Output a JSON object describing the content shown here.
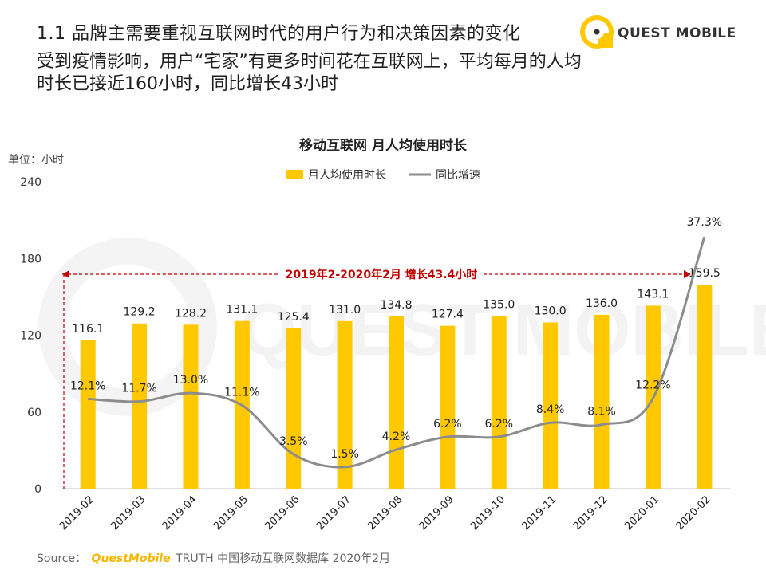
{
  "header": {
    "section_title": "1.1 品牌主需要重视互联网时代的用户行为和决策因素的变化",
    "subtitle": "受到疫情影响，用户“宅家”有更多时间花在互联网上，平均每月的人均时长已接近160小时，同比增长43小时"
  },
  "logo": {
    "text": "QUEST MOBILE"
  },
  "watermark": {
    "text": "QUEST MOBILE"
  },
  "unit_label": "单位：小时",
  "source": {
    "prefix": "Source：",
    "brand": "QuestMobile",
    "suffix": "TRUTH 中国移动互联网数据库 2020年2月"
  },
  "colors": {
    "bar": "#FFC800",
    "line": "#8C8C8C",
    "annotation": "#C00000"
  },
  "chart_data": {
    "type": "bar",
    "title": "移动互联网 月人均使用时长",
    "categories": [
      "2019-02",
      "2019-03",
      "2019-04",
      "2019-05",
      "2019-06",
      "2019-07",
      "2019-08",
      "2019-09",
      "2019-10",
      "2019-11",
      "2019-12",
      "2020-01",
      "2020-02"
    ],
    "ylim": [
      0,
      240
    ],
    "yticks": [
      "0",
      "60",
      "120",
      "180",
      "240"
    ],
    "series": [
      {
        "name": "月人均使用时长",
        "type": "bar",
        "values": [
          116.1,
          129.2,
          128.2,
          131.1,
          125.4,
          131.0,
          134.8,
          127.4,
          135.0,
          130.0,
          136.0,
          143.1,
          159.5
        ],
        "labels": [
          "116.1",
          "129.2",
          "128.2",
          "131.1",
          "125.4",
          "131.0",
          "134.8",
          "127.4",
          "135.0",
          "130.0",
          "136.0",
          "143.1",
          "159.5"
        ]
      },
      {
        "name": "同比增速",
        "type": "line",
        "unit": "%",
        "values": [
          12.1,
          11.7,
          13.0,
          11.1,
          3.5,
          1.5,
          4.2,
          6.2,
          6.2,
          8.4,
          8.1,
          12.2,
          37.3
        ],
        "labels": [
          "12.1%",
          "11.7%",
          "13.0%",
          "11.1%",
          "3.5%",
          "1.5%",
          "4.2%",
          "6.2%",
          "6.2%",
          "8.4%",
          "8.1%",
          "12.2%",
          "37.3%"
        ]
      }
    ],
    "annotation": "2019年2-2020年2月  增长43.4小时",
    "legend": "top-center"
  }
}
